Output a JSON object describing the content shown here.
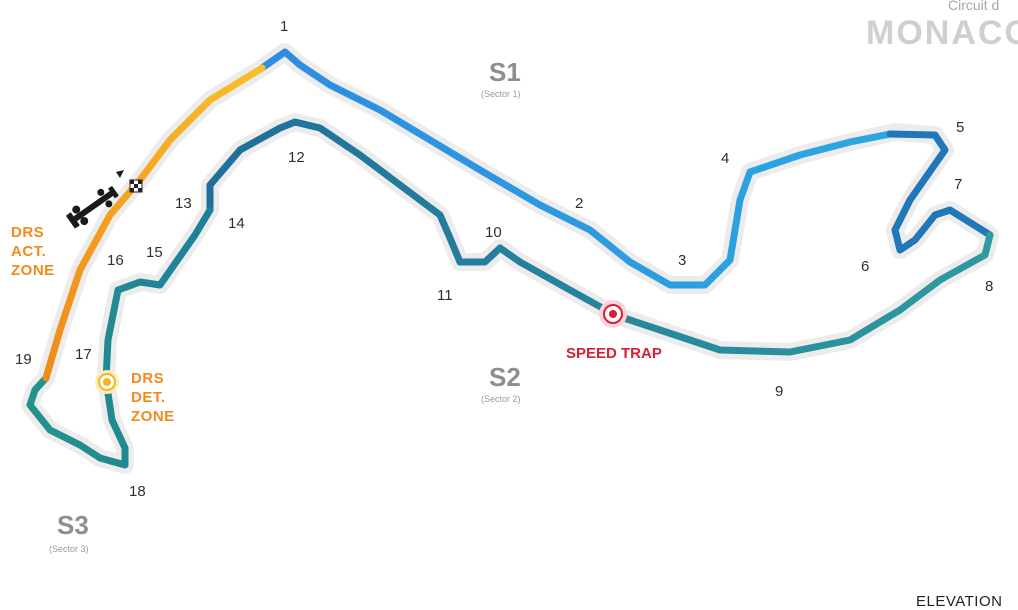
{
  "header": {
    "circuit_subtitle": "Circuit d",
    "circuit_name": "MONACO"
  },
  "sectors": [
    {
      "label": "S1",
      "sub": "(Sector 1)"
    },
    {
      "label": "S2",
      "sub": "(Sector 2)"
    },
    {
      "label": "S3",
      "sub": "(Sector 3)"
    }
  ],
  "turns": [
    "1",
    "2",
    "3",
    "4",
    "5",
    "6",
    "7",
    "8",
    "9",
    "10",
    "11",
    "12",
    "13",
    "14",
    "15",
    "16",
    "17",
    "18",
    "19"
  ],
  "drs_activation": {
    "line1": "DRS",
    "line2": "ACT.",
    "line3": "ZONE"
  },
  "drs_detection": {
    "line1": "DRS",
    "line2": "DET.",
    "line3": "ZONE"
  },
  "speed_trap": "SPEED TRAP",
  "footer": {
    "elevation": "ELEVATION"
  },
  "colors": {
    "sector1": "#2f9be0",
    "sector2": "#2b8f9a",
    "sector3": "#1f9089",
    "drs_zone": "#f4a21e",
    "drs_detection": "#f5b41f",
    "speed_trap": "#d71e36",
    "halo": "#ececec"
  }
}
